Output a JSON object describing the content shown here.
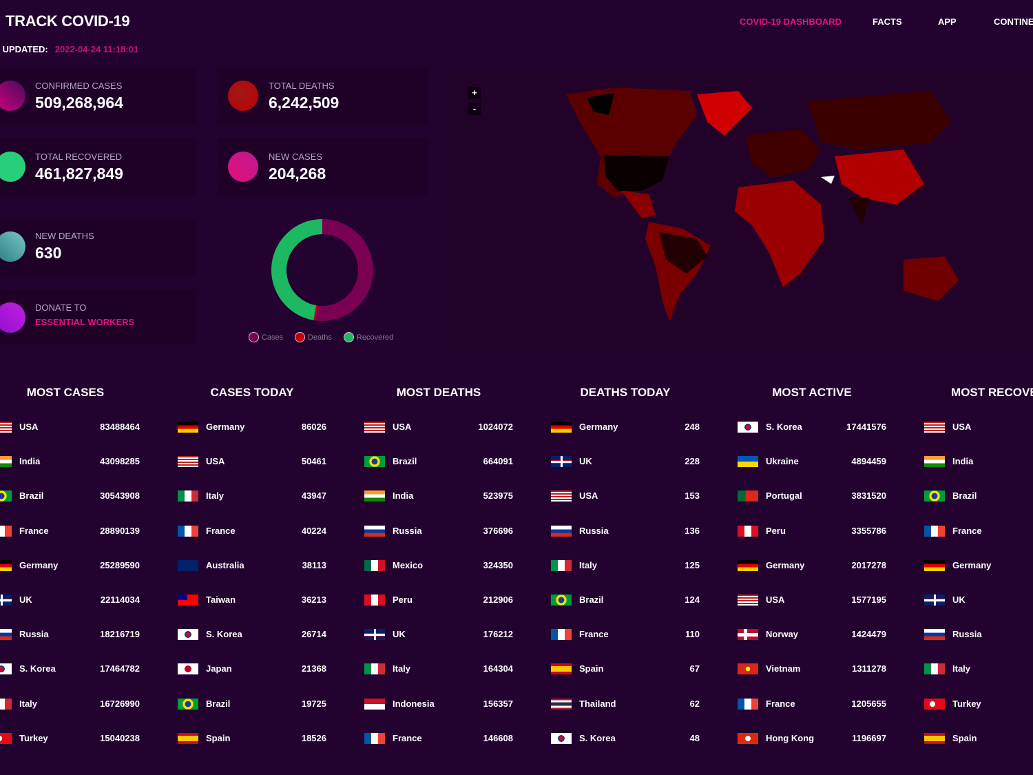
{
  "header": {
    "title": "TRACK COVID-19",
    "nav": [
      "COVID-19 DASHBOARD",
      "FACTS",
      "APP",
      "CONTINE"
    ],
    "updated_label": "T UPDATED:",
    "updated_value": "2022-04-24 11:18:01"
  },
  "stats": {
    "confirmed": {
      "label": "CONFIRMED CASES",
      "value": "509,268,964"
    },
    "deaths": {
      "label": "TOTAL DEATHS",
      "value": "6,242,509"
    },
    "recovered": {
      "label": "TOTAL RECOVERED",
      "value": "461,827,849"
    },
    "new_cases": {
      "label": "NEW CASES",
      "value": "204,268"
    },
    "new_deaths": {
      "label": "NEW DEATHS",
      "value": "630"
    },
    "donate": {
      "label": "DONATE TO",
      "link": "ESSENTIAL WORKERS"
    }
  },
  "chart_data": {
    "type": "pie",
    "donut": true,
    "labels": [
      "Cases",
      "Deaths",
      "Recovered"
    ],
    "values": [
      509268964,
      6242509,
      461827849
    ],
    "colors": [
      "#790052",
      "#c80000",
      "#1db862"
    ],
    "legend_position": "bottom"
  },
  "map": {
    "zoom_in": "+",
    "zoom_out": "-"
  },
  "tables": [
    {
      "title": "MOST CASES",
      "rows": [
        [
          "USA",
          "83488464",
          "us"
        ],
        [
          "India",
          "43098285",
          "in"
        ],
        [
          "Brazil",
          "30543908",
          "br"
        ],
        [
          "France",
          "28890139",
          "fr"
        ],
        [
          "Germany",
          "25289590",
          "de"
        ],
        [
          "UK",
          "22114034",
          "gb"
        ],
        [
          "Russia",
          "18216719",
          "ru"
        ],
        [
          "S. Korea",
          "17464782",
          "kr"
        ],
        [
          "Italy",
          "16726990",
          "it"
        ],
        [
          "Turkey",
          "15040238",
          "tr"
        ]
      ]
    },
    {
      "title": "CASES TODAY",
      "rows": [
        [
          "Germany",
          "86026",
          "de"
        ],
        [
          "USA",
          "50461",
          "us"
        ],
        [
          "Italy",
          "43947",
          "it"
        ],
        [
          "France",
          "40224",
          "fr"
        ],
        [
          "Australia",
          "38113",
          "au"
        ],
        [
          "Taiwan",
          "36213",
          "tw"
        ],
        [
          "S. Korea",
          "26714",
          "kr"
        ],
        [
          "Japan",
          "21368",
          "jp"
        ],
        [
          "Brazil",
          "19725",
          "br"
        ],
        [
          "Spain",
          "18526",
          "es"
        ]
      ]
    },
    {
      "title": "MOST DEATHS",
      "rows": [
        [
          "USA",
          "1024072",
          "us"
        ],
        [
          "Brazil",
          "664091",
          "br"
        ],
        [
          "India",
          "523975",
          "in"
        ],
        [
          "Russia",
          "376696",
          "ru"
        ],
        [
          "Mexico",
          "324350",
          "mx"
        ],
        [
          "Peru",
          "212906",
          "pe"
        ],
        [
          "UK",
          "176212",
          "gb"
        ],
        [
          "Italy",
          "164304",
          "it"
        ],
        [
          "Indonesia",
          "156357",
          "id"
        ],
        [
          "France",
          "146608",
          "fr"
        ]
      ]
    },
    {
      "title": "DEATHS TODAY",
      "rows": [
        [
          "Germany",
          "248",
          "de"
        ],
        [
          "UK",
          "228",
          "gb"
        ],
        [
          "USA",
          "153",
          "us"
        ],
        [
          "Russia",
          "136",
          "ru"
        ],
        [
          "Italy",
          "125",
          "it"
        ],
        [
          "Brazil",
          "124",
          "br"
        ],
        [
          "France",
          "110",
          "fr"
        ],
        [
          "Spain",
          "67",
          "es"
        ],
        [
          "Thailand",
          "62",
          "th"
        ],
        [
          "S. Korea",
          "48",
          "kr"
        ]
      ]
    },
    {
      "title": "MOST ACTIVE",
      "rows": [
        [
          "S. Korea",
          "17441576",
          "kr"
        ],
        [
          "Ukraine",
          "4894459",
          "ua"
        ],
        [
          "Portugal",
          "3831520",
          "pt"
        ],
        [
          "Peru",
          "3355786",
          "pe"
        ],
        [
          "Germany",
          "2017278",
          "de"
        ],
        [
          "USA",
          "1577195",
          "us"
        ],
        [
          "Norway",
          "1424479",
          "no"
        ],
        [
          "Vietnam",
          "1311278",
          "vn"
        ],
        [
          "France",
          "1205655",
          "fr"
        ],
        [
          "Hong Kong",
          "1196697",
          "hk"
        ]
      ]
    },
    {
      "title": "MOST RECOVER",
      "rows": [
        [
          "USA",
          "",
          "us"
        ],
        [
          "India",
          "",
          "in"
        ],
        [
          "Brazil",
          "",
          "br"
        ],
        [
          "France",
          "",
          "fr"
        ],
        [
          "Germany",
          "",
          "de"
        ],
        [
          "UK",
          "",
          "gb"
        ],
        [
          "Russia",
          "",
          "ru"
        ],
        [
          "Italy",
          "",
          "it"
        ],
        [
          "Turkey",
          "",
          "tr"
        ],
        [
          "Spain",
          "",
          "es"
        ]
      ]
    }
  ]
}
